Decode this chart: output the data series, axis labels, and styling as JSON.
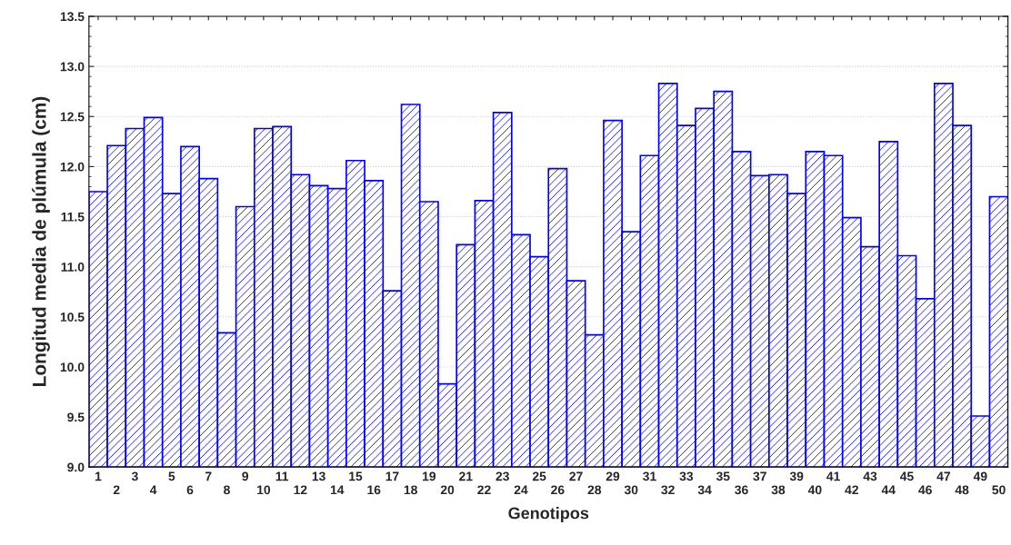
{
  "chart_data": {
    "type": "bar",
    "xlabel": "Genotipos",
    "ylabel": "Longitud media de plúmula (cm)",
    "categories": [
      "1",
      "2",
      "3",
      "4",
      "5",
      "6",
      "7",
      "8",
      "9",
      "10",
      "11",
      "12",
      "13",
      "14",
      "15",
      "16",
      "17",
      "18",
      "19",
      "20",
      "21",
      "22",
      "23",
      "24",
      "25",
      "26",
      "27",
      "28",
      "29",
      "30",
      "31",
      "32",
      "33",
      "34",
      "35",
      "36",
      "37",
      "38",
      "39",
      "40",
      "41",
      "42",
      "43",
      "44",
      "45",
      "46",
      "47",
      "48",
      "49",
      "50"
    ],
    "values": [
      11.75,
      12.21,
      12.38,
      12.49,
      11.73,
      12.2,
      11.88,
      10.34,
      11.6,
      12.38,
      12.4,
      11.92,
      11.81,
      11.78,
      12.06,
      11.86,
      10.76,
      12.62,
      11.65,
      9.83,
      11.22,
      11.66,
      12.54,
      11.32,
      11.1,
      11.98,
      10.86,
      10.32,
      12.46,
      11.35,
      12.11,
      12.83,
      12.41,
      12.58,
      12.75,
      12.15,
      11.91,
      11.92,
      11.73,
      12.15,
      12.11,
      11.49,
      11.2,
      12.25,
      11.11,
      10.68,
      12.83,
      12.41,
      9.51,
      11.7
    ],
    "color": "#0000ff",
    "ylim": [
      9.0,
      13.5
    ],
    "yticks": [
      {
        "value": 9.0,
        "label": "9.0"
      },
      {
        "value": 9.5,
        "label": "9.5"
      },
      {
        "value": 10.0,
        "label": "10.0"
      },
      {
        "value": 10.5,
        "label": "10.5"
      },
      {
        "value": 11.0,
        "label": "11.0"
      },
      {
        "value": 11.5,
        "label": "11.5"
      },
      {
        "value": 12.0,
        "label": "12.0"
      },
      {
        "value": 12.5,
        "label": "12.5"
      },
      {
        "value": 13.0,
        "label": "13.0"
      },
      {
        "value": 13.5,
        "label": "13.5"
      }
    ],
    "grid": "y"
  }
}
